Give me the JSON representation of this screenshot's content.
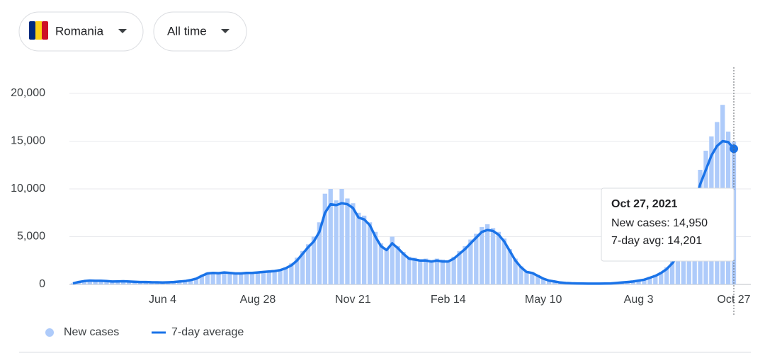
{
  "controls": {
    "country": "Romania",
    "range": "All time"
  },
  "chart_data": {
    "type": "bar-line",
    "categories": [
      null,
      null,
      null,
      null,
      null,
      null,
      null,
      null,
      null,
      null,
      null,
      null,
      null,
      null,
      null,
      null,
      "Jun 4",
      null,
      null,
      null,
      null,
      null,
      null,
      null,
      null,
      null,
      null,
      null,
      null,
      null,
      null,
      null,
      null,
      "Aug 28",
      null,
      null,
      null,
      null,
      null,
      null,
      null,
      null,
      null,
      null,
      null,
      null,
      null,
      null,
      null,
      null,
      "Nov 21",
      null,
      null,
      null,
      null,
      null,
      null,
      null,
      null,
      null,
      null,
      null,
      null,
      null,
      null,
      null,
      null,
      "Feb 14",
      null,
      null,
      null,
      null,
      null,
      null,
      null,
      null,
      null,
      null,
      null,
      null,
      null,
      null,
      null,
      null,
      "May 10",
      null,
      null,
      null,
      null,
      null,
      null,
      null,
      null,
      null,
      null,
      null,
      null,
      null,
      null,
      null,
      null,
      "Aug 3",
      null,
      null,
      null,
      null,
      null,
      null,
      null,
      null,
      null,
      null,
      null,
      null,
      null,
      null,
      null,
      null,
      "Oct 27"
    ],
    "series": [
      {
        "name": "New cases",
        "color": "#aecbfa",
        "values": [
          120,
          300,
          400,
          380,
          420,
          350,
          330,
          280,
          350,
          310,
          280,
          300,
          230,
          260,
          210,
          240,
          190,
          230,
          270,
          320,
          380,
          500,
          700,
          1000,
          1250,
          1150,
          1250,
          1300,
          1150,
          1200,
          1100,
          1300,
          1150,
          1300,
          1250,
          1450,
          1500,
          1600,
          1800,
          2200,
          2800,
          3500,
          4200,
          5000,
          6500,
          9500,
          10000,
          8800,
          10000,
          9000,
          8500,
          7500,
          7200,
          6500,
          5500,
          4300,
          3800,
          5000,
          4000,
          3400,
          2900,
          2800,
          2600,
          2700,
          2500,
          2700,
          2600,
          2500,
          2900,
          3500,
          4000,
          4700,
          5300,
          6000,
          6300,
          5900,
          5500,
          4800,
          3700,
          2700,
          1900,
          1400,
          1300,
          1000,
          650,
          450,
          330,
          220,
          170,
          130,
          110,
          100,
          90,
          85,
          90,
          100,
          110,
          170,
          230,
          280,
          340,
          450,
          560,
          800,
          1000,
          1300,
          1800,
          2500,
          3300,
          4600,
          6800,
          9500,
          12000,
          14000,
          15500,
          17000,
          18800,
          16000,
          14950
        ]
      },
      {
        "name": "7-day average",
        "color": "#1a73e8",
        "values": [
          100,
          250,
          350,
          400,
          380,
          380,
          350,
          300,
          320,
          330,
          300,
          280,
          250,
          250,
          230,
          220,
          200,
          220,
          250,
          300,
          350,
          450,
          600,
          900,
          1150,
          1200,
          1180,
          1250,
          1200,
          1150,
          1150,
          1200,
          1200,
          1250,
          1300,
          1350,
          1400,
          1500,
          1700,
          2000,
          2500,
          3200,
          3900,
          4500,
          5500,
          7500,
          8400,
          8300,
          8500,
          8400,
          8000,
          7000,
          6800,
          6200,
          5000,
          4000,
          3600,
          4300,
          3800,
          3200,
          2700,
          2600,
          2500,
          2500,
          2400,
          2500,
          2400,
          2400,
          2700,
          3200,
          3700,
          4300,
          4900,
          5500,
          5700,
          5600,
          5200,
          4500,
          3500,
          2500,
          1800,
          1300,
          1200,
          900,
          600,
          400,
          300,
          200,
          150,
          120,
          100,
          90,
          80,
          80,
          80,
          90,
          100,
          150,
          200,
          250,
          300,
          400,
          500,
          700,
          900,
          1200,
          1600,
          2200,
          3000,
          4200,
          6000,
          8500,
          10500,
          12000,
          13500,
          14500,
          15000,
          14900,
          14201
        ]
      }
    ],
    "ylim": [
      0,
      20000
    ],
    "yticks": [
      0,
      {
        "value": 5000,
        "label": "5,000"
      },
      {
        "value": 10000,
        "label": "10,000"
      },
      {
        "value": 15000,
        "label": "15,000"
      },
      {
        "value": 20000,
        "label": "20,000"
      }
    ],
    "grid": true,
    "tooltip": {
      "title": "Oct 27, 2021",
      "lines": [
        "New cases: 14,950",
        "7-day avg: 14,201"
      ]
    }
  }
}
